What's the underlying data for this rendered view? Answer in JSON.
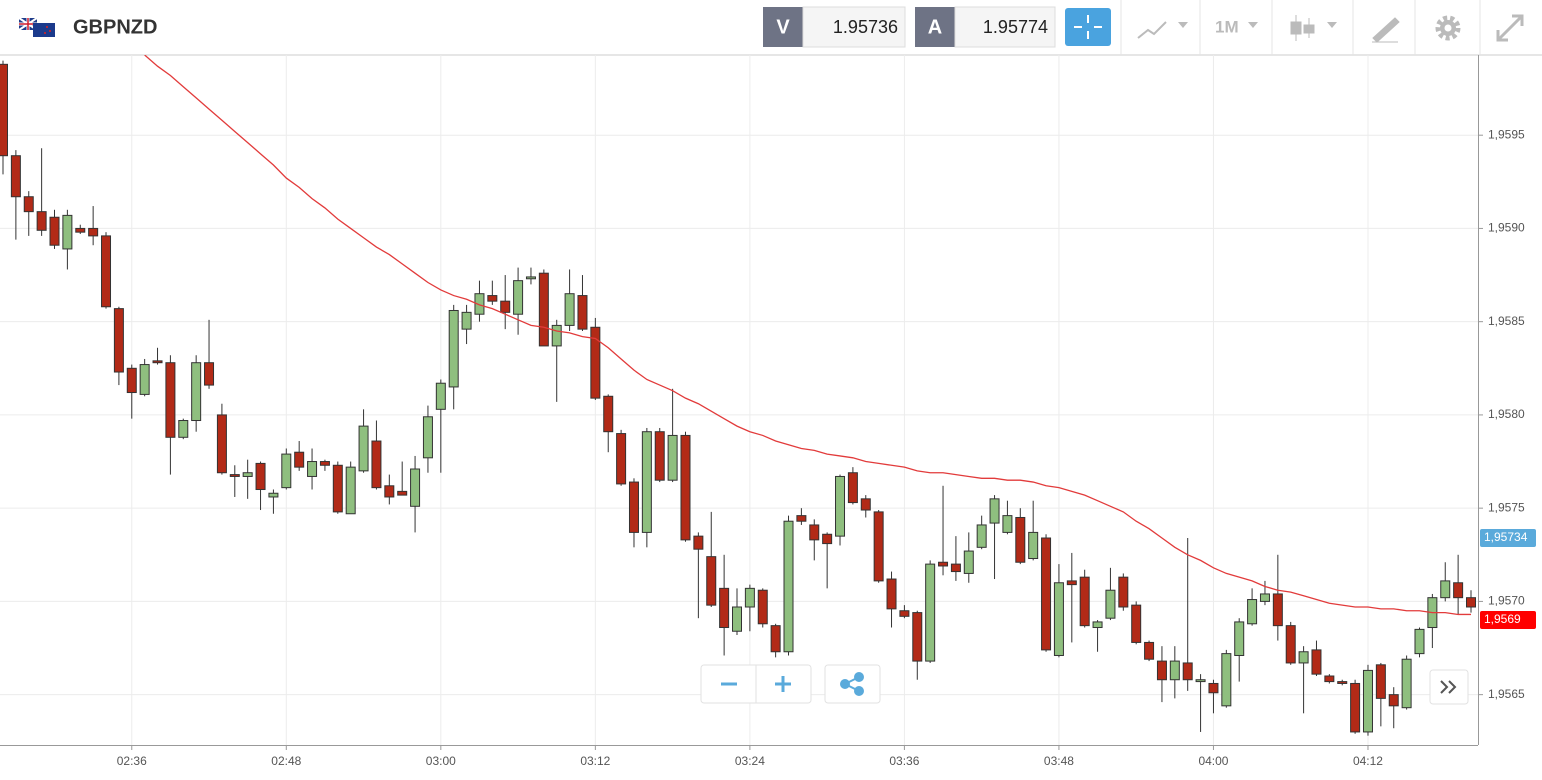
{
  "header": {
    "symbol": "GBPNZD",
    "sell_label": "V",
    "sell_price": "1.95736",
    "buy_label": "A",
    "buy_price": "1.95774",
    "timeframe": "1M"
  },
  "chart_data": {
    "type": "candlestick",
    "x": [
      "02:26",
      "02:27",
      "02:28",
      "02:29",
      "02:30",
      "02:31",
      "02:32",
      "02:33",
      "02:34",
      "02:35",
      "02:36",
      "02:37",
      "02:38",
      "02:39",
      "02:40",
      "02:41",
      "02:42",
      "02:43",
      "02:44",
      "02:45",
      "02:46",
      "02:47",
      "02:48",
      "02:49",
      "02:50",
      "02:51",
      "02:52",
      "02:53",
      "02:54",
      "02:55",
      "02:56",
      "02:57",
      "02:58",
      "02:59",
      "03:00",
      "03:01",
      "03:02",
      "03:03",
      "03:04",
      "03:05",
      "03:06",
      "03:07",
      "03:08",
      "03:09",
      "03:10",
      "03:11",
      "03:12",
      "03:13",
      "03:14",
      "03:15",
      "03:16",
      "03:17",
      "03:18",
      "03:19",
      "03:20",
      "03:21",
      "03:22",
      "03:23",
      "03:24",
      "03:25",
      "03:26",
      "03:27",
      "03:28",
      "03:29",
      "03:30",
      "03:31",
      "03:32",
      "03:33",
      "03:34",
      "03:35",
      "03:36",
      "03:37",
      "03:38",
      "03:39",
      "03:40",
      "03:41",
      "03:42",
      "03:43",
      "03:44",
      "03:45",
      "03:46",
      "03:47",
      "03:48",
      "03:49",
      "03:50",
      "03:51",
      "03:52",
      "03:53",
      "03:54",
      "03:55",
      "03:56",
      "03:57",
      "03:58",
      "03:59",
      "04:00",
      "04:01",
      "04:02",
      "04:03",
      "04:04",
      "04:05",
      "04:06",
      "04:07",
      "04:08",
      "04:09",
      "04:10",
      "04:11",
      "04:12",
      "04:13",
      "04:14",
      "04:15",
      "04:16",
      "04:17",
      "04:18",
      "04:19",
      "04:20"
    ],
    "open": [
      1.95988,
      1.95939,
      1.95917,
      1.95909,
      1.95906,
      1.95889,
      1.959,
      1.959,
      1.95896,
      1.95857,
      1.95825,
      1.95811,
      1.95829,
      1.95828,
      1.95788,
      1.95797,
      1.95828,
      1.958,
      1.95768,
      1.95767,
      1.95774,
      1.95756,
      1.95761,
      1.9578,
      1.95767,
      1.95775,
      1.95773,
      1.95747,
      1.9577,
      1.95786,
      1.95762,
      1.95759,
      1.95751,
      1.95777,
      1.95803,
      1.95815,
      1.95846,
      1.95854,
      1.95864,
      1.95861,
      1.95854,
      1.95873,
      1.95876,
      1.95837,
      1.95848,
      1.95864,
      1.95847,
      1.9581,
      1.9579,
      1.95764,
      1.95737,
      1.95791,
      1.95765,
      1.95789,
      1.95735,
      1.95724,
      1.95707,
      1.95684,
      1.95697,
      1.95706,
      1.95687,
      1.95673,
      1.95746,
      1.95741,
      1.95736,
      1.95735,
      1.95769,
      1.95755,
      1.95748,
      1.95712,
      1.95695,
      1.95694,
      1.95668,
      1.95721,
      1.9572,
      1.95715,
      1.95729,
      1.95742,
      1.95737,
      1.95745,
      1.95723,
      1.95734,
      1.95671,
      1.95711,
      1.95713,
      1.95686,
      1.95691,
      1.95713,
      1.95698,
      1.95678,
      1.95668,
      1.95658,
      1.95667,
      1.95657,
      1.95656,
      1.95644,
      1.95671,
      1.95688,
      1.957,
      1.95704,
      1.95687,
      1.95667,
      1.95674,
      1.9566,
      1.95657,
      1.95656,
      1.9563,
      1.95666,
      1.9565,
      1.95643,
      1.95672,
      1.95686,
      1.95702,
      1.9571,
      1.95702
    ],
    "high": [
      1.9599,
      1.95942,
      1.9592,
      1.95943,
      1.9591,
      1.9591,
      1.95902,
      1.95912,
      1.95898,
      1.95858,
      1.95827,
      1.9583,
      1.95836,
      1.95832,
      1.95798,
      1.95832,
      1.95851,
      1.95806,
      1.95773,
      1.95776,
      1.95775,
      1.9576,
      1.95782,
      1.95786,
      1.95782,
      1.95776,
      1.95775,
      1.95775,
      1.95803,
      1.95797,
      1.95768,
      1.95775,
      1.95778,
      1.95805,
      1.95819,
      1.95859,
      1.95859,
      1.95872,
      1.95872,
      1.95875,
      1.95879,
      1.95879,
      1.95878,
      1.95851,
      1.95878,
      1.95875,
      1.95852,
      1.95811,
      1.95792,
      1.95766,
      1.95793,
      1.95793,
      1.95814,
      1.95791,
      1.95737,
      1.95748,
      1.95725,
      1.95707,
      1.95709,
      1.95707,
      1.95688,
      1.95746,
      1.9575,
      1.95744,
      1.95737,
      1.95768,
      1.95772,
      1.95757,
      1.95749,
      1.95716,
      1.95698,
      1.95695,
      1.95722,
      1.95762,
      1.95735,
      1.95737,
      1.95746,
      1.95757,
      1.95754,
      1.9575,
      1.95754,
      1.95736,
      1.9572,
      1.95726,
      1.95717,
      1.9569,
      1.95718,
      1.95715,
      1.957,
      1.95679,
      1.95676,
      1.95676,
      1.95734,
      1.95661,
      1.95658,
      1.95674,
      1.95691,
      1.95707,
      1.95711,
      1.95725,
      1.95689,
      1.95676,
      1.95679,
      1.95661,
      1.95658,
      1.95658,
      1.95666,
      1.95667,
      1.95654,
      1.95671,
      1.95686,
      1.95704,
      1.95721,
      1.95725,
      1.95706
    ],
    "low": [
      1.95929,
      1.95894,
      1.95896,
      1.95896,
      1.95889,
      1.95878,
      1.95897,
      1.95891,
      1.95857,
      1.95816,
      1.95798,
      1.9581,
      1.95827,
      1.95768,
      1.95787,
      1.95791,
      1.95814,
      1.95768,
      1.95756,
      1.95755,
      1.95749,
      1.95747,
      1.9576,
      1.9577,
      1.9576,
      1.9577,
      1.95747,
      1.95747,
      1.95769,
      1.9576,
      1.95752,
      1.95757,
      1.95737,
      1.95769,
      1.95769,
      1.95803,
      1.95838,
      1.9585,
      1.95859,
      1.95846,
      1.95843,
      1.9587,
      1.95837,
      1.95807,
      1.95845,
      1.95845,
      1.95808,
      1.9578,
      1.95762,
      1.95729,
      1.95729,
      1.95764,
      1.95764,
      1.95732,
      1.95691,
      1.95697,
      1.95671,
      1.95682,
      1.95684,
      1.95686,
      1.9567,
      1.95671,
      1.95741,
      1.95722,
      1.95707,
      1.9573,
      1.95752,
      1.95745,
      1.9571,
      1.95686,
      1.95691,
      1.95658,
      1.95667,
      1.95714,
      1.95711,
      1.9571,
      1.95728,
      1.95712,
      1.95736,
      1.9572,
      1.95722,
      1.95673,
      1.9567,
      1.95678,
      1.95686,
      1.95673,
      1.9569,
      1.95695,
      1.95677,
      1.95668,
      1.95646,
      1.95648,
      1.95652,
      1.9563,
      1.9564,
      1.95643,
      1.95657,
      1.95687,
      1.95698,
      1.95679,
      1.95666,
      1.9564,
      1.9566,
      1.95656,
      1.95655,
      1.95629,
      1.95628,
      1.95633,
      1.95632,
      1.95642,
      1.9567,
      1.95675,
      1.957,
      1.95693,
      1.95694
    ],
    "close": [
      1.95939,
      1.95917,
      1.95909,
      1.95899,
      1.95891,
      1.95907,
      1.95898,
      1.95896,
      1.95858,
      1.95823,
      1.95812,
      1.95827,
      1.95828,
      1.95788,
      1.95797,
      1.95828,
      1.95816,
      1.95769,
      1.95767,
      1.95769,
      1.9576,
      1.95758,
      1.95779,
      1.95772,
      1.95775,
      1.95773,
      1.95748,
      1.95772,
      1.95794,
      1.95761,
      1.95756,
      1.95757,
      1.95771,
      1.95799,
      1.95817,
      1.95856,
      1.95855,
      1.95865,
      1.95861,
      1.95855,
      1.95872,
      1.95874,
      1.95837,
      1.95848,
      1.95865,
      1.95846,
      1.95809,
      1.95791,
      1.95763,
      1.95737,
      1.95791,
      1.95765,
      1.95789,
      1.95733,
      1.95728,
      1.95698,
      1.95686,
      1.95697,
      1.95707,
      1.95688,
      1.95673,
      1.95743,
      1.95743,
      1.95733,
      1.95731,
      1.95767,
      1.95753,
      1.95749,
      1.95711,
      1.95696,
      1.95692,
      1.95668,
      1.9572,
      1.95719,
      1.95716,
      1.95727,
      1.95741,
      1.95755,
      1.95746,
      1.95721,
      1.95737,
      1.95674,
      1.9571,
      1.95709,
      1.95687,
      1.95689,
      1.95706,
      1.95697,
      1.95678,
      1.95669,
      1.95658,
      1.95668,
      1.95658,
      1.95658,
      1.95651,
      1.95672,
      1.95689,
      1.95701,
      1.95704,
      1.95687,
      1.95667,
      1.95673,
      1.95661,
      1.95657,
      1.95656,
      1.9563,
      1.95663,
      1.95648,
      1.95644,
      1.95669,
      1.95685,
      1.95702,
      1.95711,
      1.95702,
      1.95697
    ],
    "up_color": "#8fbf7f",
    "down_color": "#b22a17",
    "moving_average": {
      "color": "#e23b3b",
      "values": [
        null,
        null,
        null,
        null,
        null,
        null,
        null,
        null,
        null,
        null,
        null,
        1.95993,
        1.95987,
        1.95982,
        1.95976,
        1.9597,
        1.95964,
        1.95958,
        1.95952,
        1.95946,
        1.9594,
        1.95934,
        1.95927,
        1.95922,
        1.95916,
        1.95911,
        1.95905,
        1.959,
        1.95895,
        1.9589,
        1.95886,
        1.95881,
        1.95876,
        1.95871,
        1.95867,
        1.95864,
        1.95862,
        1.95859,
        1.95857,
        1.95854,
        1.95851,
        1.95848,
        1.95847,
        1.95845,
        1.95844,
        1.95842,
        1.95841,
        1.95836,
        1.9583,
        1.95824,
        1.95819,
        1.95816,
        1.95813,
        1.95809,
        1.95806,
        1.95802,
        1.95798,
        1.95794,
        1.95791,
        1.95789,
        1.95786,
        1.95784,
        1.95782,
        1.95781,
        1.95779,
        1.95778,
        1.95777,
        1.95775,
        1.95774,
        1.95773,
        1.95772,
        1.9577,
        1.95769,
        1.95769,
        1.95768,
        1.95767,
        1.95766,
        1.95766,
        1.95765,
        1.95765,
        1.95764,
        1.95762,
        1.95761,
        1.95759,
        1.95757,
        1.95754,
        1.95751,
        1.95748,
        1.95743,
        1.95739,
        1.95734,
        1.95729,
        1.95725,
        1.95722,
        1.95718,
        1.95715,
        1.95713,
        1.95711,
        1.95708,
        1.95706,
        1.95705,
        1.95703,
        1.95701,
        1.95699,
        1.95698,
        1.95697,
        1.95697,
        1.95696,
        1.95696,
        1.95695,
        1.95695,
        1.95694,
        1.95694,
        1.95693,
        1.95693
      ]
    },
    "xlim": [
      "02:26",
      "04:20"
    ],
    "xticks": [
      "02:36",
      "02:48",
      "03:00",
      "03:12",
      "03:24",
      "03:36",
      "03:48",
      "04:00",
      "04:12"
    ],
    "ylim": [
      1.95623,
      1.95993
    ],
    "yticks": [
      {
        "value": 1.9565,
        "label": "1,9565"
      },
      {
        "value": 1.957,
        "label": "1,9570"
      },
      {
        "value": 1.9575,
        "label": "1,9575"
      },
      {
        "value": 1.958,
        "label": "1,9580"
      },
      {
        "value": 1.9585,
        "label": "1,9585"
      },
      {
        "value": 1.959,
        "label": "1,9590"
      },
      {
        "value": 1.9595,
        "label": "1,9595"
      }
    ],
    "grid": true,
    "price_label": {
      "value": 1.95734,
      "label": "1,95734",
      "color": "#5aaadb"
    },
    "average_label": {
      "value": 1.9569,
      "label": "1,9569",
      "color": "#ff0000"
    }
  }
}
